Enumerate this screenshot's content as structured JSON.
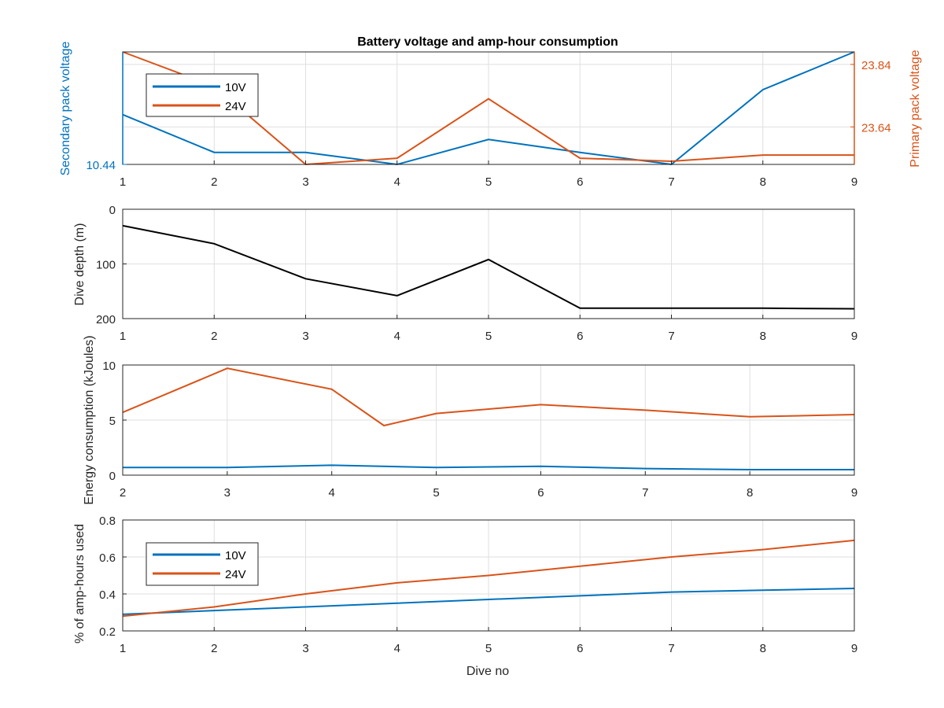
{
  "chart_data": [
    {
      "type": "line",
      "title": "Battery voltage and amp-hour consumption",
      "xlabel": "",
      "ylabel_left": "Secondary pack voltage",
      "ylabel_right": "Primary pack voltage",
      "xlim": [
        1,
        9
      ],
      "xticks": [
        1,
        2,
        3,
        4,
        5,
        6,
        7,
        8,
        9
      ],
      "yticks_left": [
        10.44
      ],
      "yticks_right": [
        23.64,
        23.84
      ],
      "ylim_left": [
        10.44,
        10.58
      ],
      "ylim_right": [
        23.52,
        23.88
      ],
      "grid": true,
      "legend_position": "top-left",
      "colors": {
        "10V": "#0072BD",
        "24V": "#D95319"
      },
      "series": [
        {
          "name": "10V",
          "axis": "left",
          "x": [
            1,
            2,
            3,
            4,
            5,
            6,
            7,
            8,
            9
          ],
          "values": [
            10.502,
            10.455,
            10.455,
            10.44,
            10.471,
            10.455,
            10.44,
            10.533,
            10.58
          ]
        },
        {
          "name": "24V",
          "axis": "right",
          "x": [
            1,
            2,
            3,
            4,
            5,
            6,
            7,
            8,
            9
          ],
          "values": [
            23.88,
            23.77,
            23.52,
            23.54,
            23.73,
            23.54,
            23.53,
            23.55,
            23.55
          ]
        }
      ]
    },
    {
      "type": "line",
      "title": "",
      "xlabel": "",
      "ylabel": "Dive depth (m)",
      "xlim": [
        1,
        9
      ],
      "xticks": [
        1,
        2,
        3,
        4,
        5,
        6,
        7,
        8,
        9
      ],
      "ylim": [
        0,
        200
      ],
      "yticks": [
        0,
        100,
        200
      ],
      "y_reversed": true,
      "grid": true,
      "colors": {
        "depth": "#000000"
      },
      "series": [
        {
          "x": [
            1,
            2,
            3,
            4,
            5,
            6,
            7,
            8,
            9
          ],
          "values": [
            30,
            63,
            127,
            158,
            92,
            181,
            181,
            181,
            182
          ]
        }
      ]
    },
    {
      "type": "line",
      "title": "",
      "xlabel": "",
      "ylabel": "Energy consumption (kJoules)",
      "xlim": [
        2,
        9
      ],
      "xticks": [
        2,
        3,
        4,
        5,
        6,
        7,
        8,
        9
      ],
      "ylim": [
        0,
        10
      ],
      "yticks": [
        0,
        5,
        10
      ],
      "grid": true,
      "colors": {
        "10V": "#0072BD",
        "24V": "#D95319"
      },
      "series": [
        {
          "name": "10V",
          "x": [
            2,
            3,
            4,
            5,
            6,
            7,
            8,
            9
          ],
          "values": [
            0.7,
            0.7,
            0.9,
            0.7,
            0.8,
            0.6,
            0.5,
            0.5
          ]
        },
        {
          "name": "24V",
          "x": [
            2,
            3,
            4,
            4.5,
            5,
            6,
            7,
            8,
            9
          ],
          "values": [
            5.7,
            9.7,
            7.8,
            4.5,
            5.6,
            6.4,
            5.9,
            5.3,
            5.5
          ]
        }
      ]
    },
    {
      "type": "line",
      "title": "",
      "xlabel": "Dive no",
      "ylabel": "% of amp-hours used",
      "xlim": [
        1,
        9
      ],
      "xticks": [
        1,
        2,
        3,
        4,
        5,
        6,
        7,
        8,
        9
      ],
      "ylim": [
        0.2,
        0.8
      ],
      "yticks": [
        0.2,
        0.4,
        0.6,
        0.8
      ],
      "grid": true,
      "legend_position": "top-left",
      "colors": {
        "10V": "#0072BD",
        "24V": "#D95319"
      },
      "series": [
        {
          "name": "10V",
          "x": [
            1,
            2,
            3,
            4,
            5,
            6,
            7,
            8,
            9
          ],
          "values": [
            0.29,
            0.31,
            0.33,
            0.35,
            0.37,
            0.39,
            0.41,
            0.42,
            0.43
          ]
        },
        {
          "name": "24V",
          "x": [
            1,
            2,
            3,
            4,
            5,
            6,
            7,
            8,
            9
          ],
          "values": [
            0.28,
            0.33,
            0.4,
            0.46,
            0.5,
            0.55,
            0.6,
            0.64,
            0.69
          ]
        }
      ]
    }
  ]
}
